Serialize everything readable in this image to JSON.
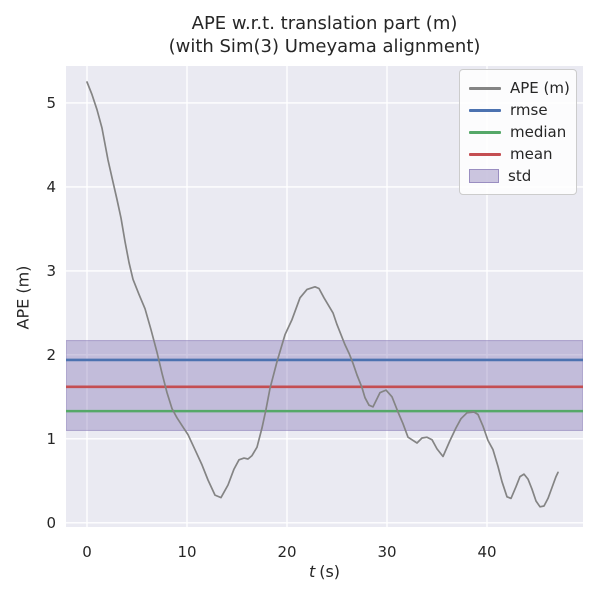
{
  "title": {
    "line1": "APE w.r.t. translation part (m)",
    "line2": "(with Sim(3) Umeyama alignment)"
  },
  "axes": {
    "xlabel_var": "t",
    "xlabel_unit": "(s)",
    "ylabel": "APE (m)"
  },
  "legend": {
    "entries": [
      {
        "label": "APE (m)",
        "type": "line",
        "color": "#848484"
      },
      {
        "label": "rmse",
        "type": "line",
        "color": "#4c72b0"
      },
      {
        "label": "median",
        "type": "line",
        "color": "#55a868"
      },
      {
        "label": "mean",
        "type": "line",
        "color": "#c44e52"
      },
      {
        "label": "std",
        "type": "patch",
        "color": "#8172b2"
      }
    ]
  },
  "colors": {
    "plot_background": "#eaeaf2",
    "grid": "#ffffff",
    "text": "#262626",
    "ape_line": "#848484",
    "rmse": "#4c72b0",
    "median": "#55a868",
    "mean": "#c44e52",
    "std_band": "#8172b2"
  },
  "chart_data": {
    "type": "line",
    "title": "APE w.r.t. translation part (m) (with Sim(3) Umeyama alignment)",
    "xlabel": "t (s)",
    "ylabel": "APE (m)",
    "xlim": [
      -2.1,
      49.6
    ],
    "ylim": [
      -0.05,
      5.44
    ],
    "x_ticks": [
      0,
      10,
      20,
      30,
      40
    ],
    "y_ticks": [
      0,
      1,
      2,
      3,
      4,
      5
    ],
    "grid": true,
    "legend_position": "upper right",
    "series": [
      {
        "name": "APE (m)",
        "color": "#848484",
        "x": [
          0,
          0.5,
          1,
          1.5,
          2.1,
          2.5,
          3,
          3.4,
          3.8,
          4.2,
          4.6,
          5.2,
          5.8,
          6.4,
          7,
          7.5,
          8,
          8.5,
          9,
          9.6,
          10.1,
          10.8,
          11.5,
          12.1,
          12.8,
          13.4,
          14.1,
          14.7,
          15.2,
          15.7,
          16.1,
          16.5,
          17,
          17.5,
          17.9,
          18.3,
          19,
          19.8,
          20.5,
          21.3,
          22,
          22.8,
          23.2,
          23.7,
          24.6,
          25,
          25.8,
          26.2,
          26.6,
          27,
          27.5,
          27.8,
          28.2,
          28.6,
          29.3,
          29.9,
          30.5,
          31.1,
          31.6,
          32.1,
          33,
          33.5,
          34,
          34.5,
          35,
          35.6,
          36.3,
          36.9,
          37.4,
          38,
          38.7,
          39.1,
          39.6,
          40.1,
          40.6,
          41.1,
          41.5,
          42,
          42.4,
          42.9,
          43.3,
          43.7,
          44.1,
          44.5,
          44.9,
          45.3,
          45.7,
          46.1,
          46.5,
          46.9,
          47.1
        ],
        "y": [
          5.25,
          5.1,
          4.92,
          4.7,
          4.32,
          4.11,
          3.85,
          3.63,
          3.35,
          3.1,
          2.9,
          2.72,
          2.55,
          2.3,
          2.03,
          1.78,
          1.55,
          1.36,
          1.25,
          1.14,
          1.05,
          0.87,
          0.69,
          0.51,
          0.33,
          0.3,
          0.45,
          0.64,
          0.75,
          0.77,
          0.76,
          0.8,
          0.9,
          1.13,
          1.35,
          1.6,
          1.92,
          2.24,
          2.42,
          2.68,
          2.78,
          2.81,
          2.79,
          2.68,
          2.5,
          2.36,
          2.12,
          2.02,
          1.9,
          1.76,
          1.61,
          1.49,
          1.4,
          1.38,
          1.55,
          1.58,
          1.5,
          1.32,
          1.18,
          1.02,
          0.95,
          1.01,
          1.02,
          0.99,
          0.88,
          0.79,
          0.98,
          1.13,
          1.24,
          1.31,
          1.32,
          1.29,
          1.15,
          0.98,
          0.87,
          0.67,
          0.49,
          0.31,
          0.29,
          0.43,
          0.55,
          0.58,
          0.52,
          0.4,
          0.26,
          0.19,
          0.2,
          0.29,
          0.42,
          0.55,
          0.6
        ]
      }
    ],
    "stat_lines": [
      {
        "name": "rmse",
        "value": 1.94,
        "color": "#4c72b0"
      },
      {
        "name": "median",
        "value": 1.33,
        "color": "#55a868"
      },
      {
        "name": "mean",
        "value": 1.62,
        "color": "#c44e52"
      }
    ],
    "std_band": {
      "name": "std",
      "range": [
        1.1,
        2.17
      ],
      "color": "#8172b2",
      "alpha": 0.38
    }
  }
}
